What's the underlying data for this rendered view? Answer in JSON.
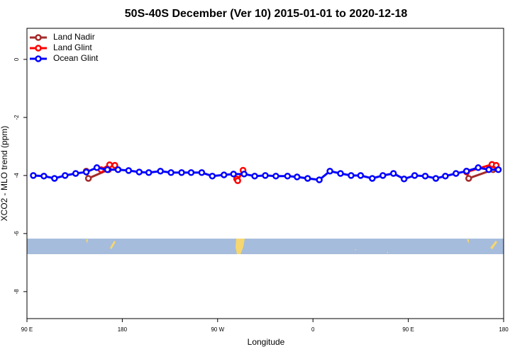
{
  "chart_data": {
    "type": "line",
    "title": "50S-40S December (Ver 10)   2015-01-01 to 2020-12-18",
    "x_label": "Longitude",
    "y_label": "XCO2 - MLO trend (ppm)",
    "xlim": [
      90,
      540
    ],
    "ylim": [
      -8.93,
      1.07
    ],
    "xticks": [
      {
        "value": 90,
        "label": "90 E"
      },
      {
        "value": 180,
        "label": "180"
      },
      {
        "value": 270,
        "label": "90 W"
      },
      {
        "value": 360,
        "label": "0"
      },
      {
        "value": 450,
        "label": "90 E"
      },
      {
        "value": 540,
        "label": "180"
      }
    ],
    "yticks": [
      0,
      -2,
      -4,
      -6,
      -8
    ],
    "legend": "top-left",
    "series": [
      {
        "name": "Land Nadir",
        "color": "#a52a2a",
        "x": [
          146,
          148,
          167,
          168,
          505,
          507,
          530
        ],
        "values": [
          -3.85,
          -4.1,
          -3.8,
          null,
          -3.85,
          -4.1,
          -3.8
        ]
      },
      {
        "name": "Land Glint",
        "color": "#ff0000",
        "x": [
          160,
          168,
          173,
          180,
          288,
          289,
          294,
          300,
          505,
          529,
          533
        ],
        "values": [
          -3.8,
          -3.63,
          -3.65,
          null,
          -4.12,
          -4.18,
          -3.82,
          null,
          -3.88,
          -3.62,
          -3.65
        ]
      },
      {
        "name": "Ocean Glint",
        "color": "#0000ff",
        "x": [
          96,
          106,
          116,
          126,
          136,
          146,
          156,
          166,
          176,
          186,
          196,
          205,
          216,
          226,
          236,
          245,
          255,
          265,
          276,
          285,
          295,
          305,
          315,
          325,
          336,
          345,
          355,
          366,
          376,
          386,
          396,
          405,
          416,
          426,
          436,
          446,
          456,
          466,
          476,
          485,
          495,
          505,
          516,
          526,
          535
        ],
        "values": [
          -4.0,
          -4.02,
          -4.1,
          -4.0,
          -3.93,
          -3.88,
          -3.73,
          -3.8,
          -3.8,
          -3.83,
          -3.88,
          -3.9,
          -3.85,
          -3.9,
          -3.9,
          -3.9,
          -3.9,
          -4.02,
          -3.98,
          -3.95,
          -3.95,
          -4.02,
          -4.0,
          -4.02,
          -4.02,
          -4.05,
          -4.1,
          -4.15,
          -3.85,
          -3.93,
          -4.0,
          -4.0,
          -4.1,
          -4.0,
          -3.93,
          -4.12,
          -4.0,
          -4.02,
          -4.1,
          -4.02,
          -3.93,
          -3.85,
          -3.73,
          -3.8,
          -3.8
        ]
      }
    ]
  }
}
